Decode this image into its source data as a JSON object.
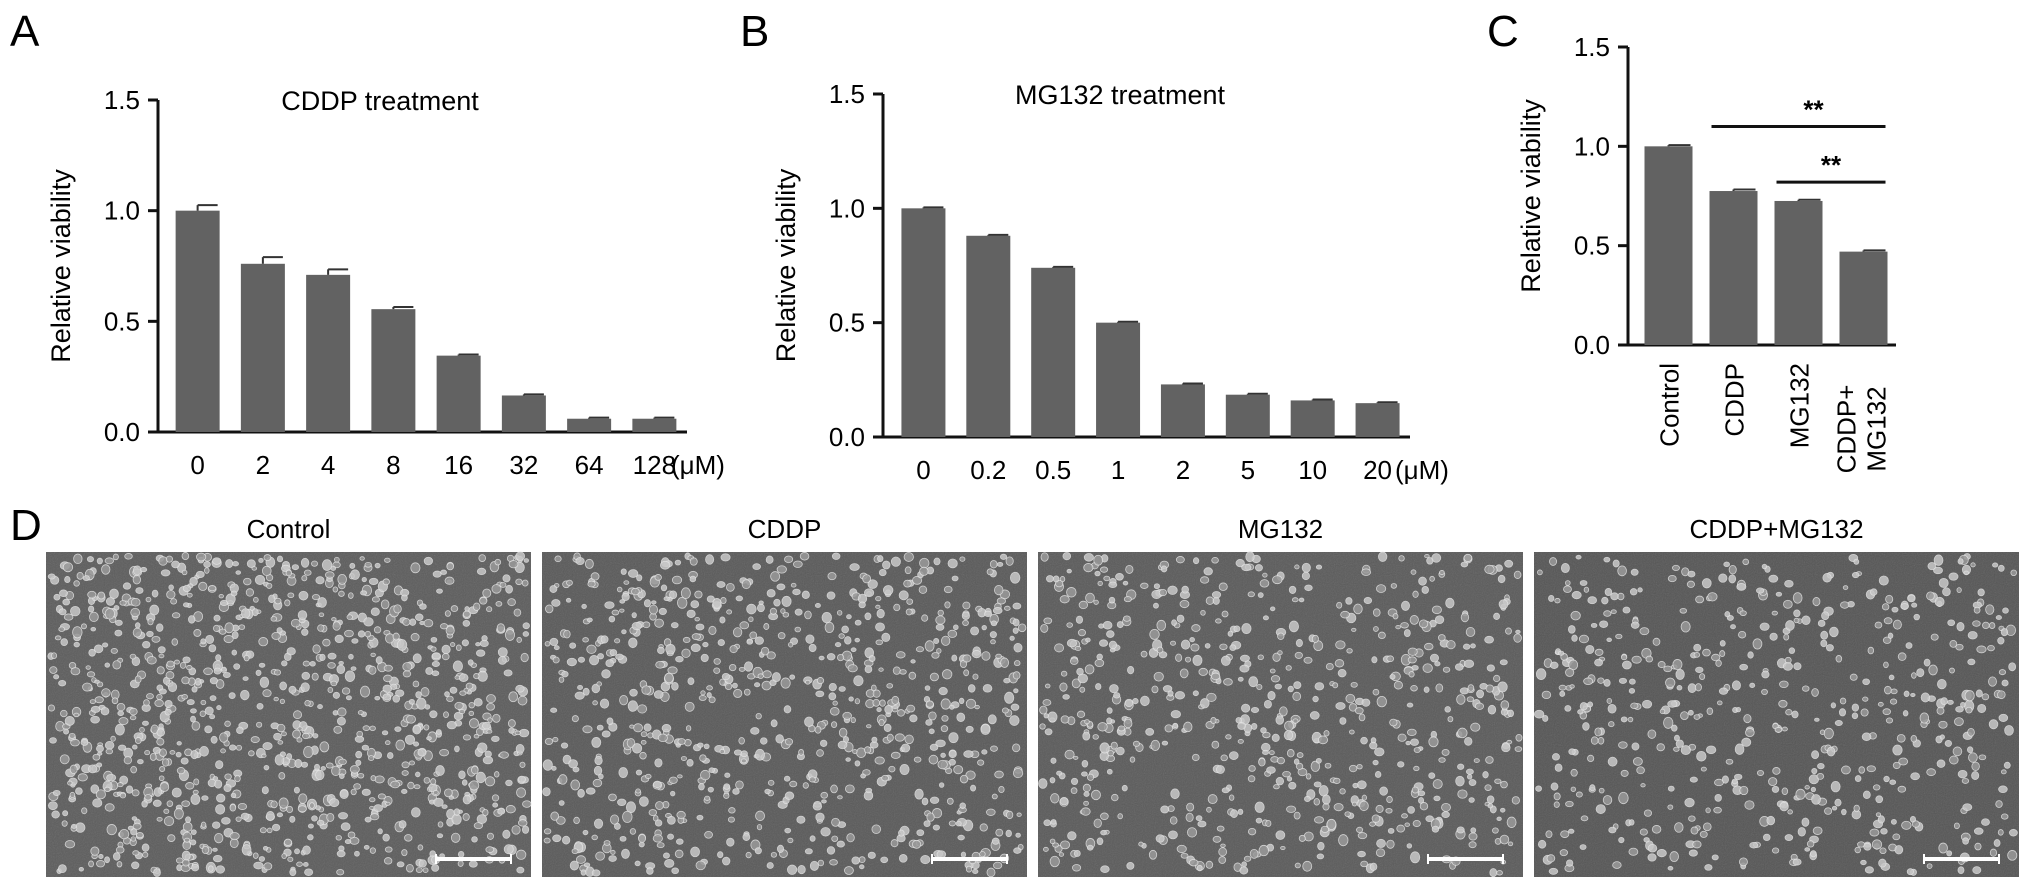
{
  "panels": {
    "A": {
      "letter": "A"
    },
    "B": {
      "letter": "B"
    },
    "C": {
      "letter": "C"
    },
    "D": {
      "letter": "D"
    }
  },
  "chart_data": [
    {
      "id": "A",
      "type": "bar",
      "title": "CDDP treatment",
      "ylabel": "Relative viability",
      "xlabel": "",
      "unit_label": "(μM)",
      "categories": [
        "0",
        "2",
        "4",
        "8",
        "16",
        "32",
        "64",
        "128"
      ],
      "values": [
        1.0,
        0.76,
        0.71,
        0.555,
        0.345,
        0.165,
        0.06,
        0.06
      ],
      "errors": [
        0.025,
        0.03,
        0.025,
        0.01,
        0.005,
        0.005,
        0.005,
        0.005
      ],
      "ylim": [
        0,
        1.5
      ],
      "yticks": [
        "0.0",
        "0.5",
        "1.0",
        "1.5"
      ],
      "bar_color": "#626262"
    },
    {
      "id": "B",
      "type": "bar",
      "title": "MG132 treatment",
      "ylabel": "Relative viability",
      "xlabel": "",
      "unit_label": "(μM)",
      "categories": [
        "0",
        "0.2",
        "0.5",
        "1",
        "2",
        "5",
        "10",
        "20"
      ],
      "values": [
        1.0,
        0.88,
        0.74,
        0.5,
        0.23,
        0.185,
        0.16,
        0.148
      ],
      "errors": [
        0.004,
        0.004,
        0.004,
        0.004,
        0.004,
        0.004,
        0.004,
        0.004
      ],
      "ylim": [
        0,
        1.5
      ],
      "yticks": [
        "0.0",
        "0.5",
        "1.0",
        "1.5"
      ],
      "bar_color": "#626262"
    },
    {
      "id": "C",
      "type": "bar",
      "title": "",
      "ylabel": "Relative viability",
      "xlabel": "",
      "categories": [
        "Control",
        "CDDP",
        "MG132",
        "CDDP+\nMG132"
      ],
      "values": [
        1.0,
        0.775,
        0.725,
        0.47
      ],
      "errors": [
        0.006,
        0.008,
        0.006,
        0.006
      ],
      "ylim": [
        0,
        1.5
      ],
      "yticks": [
        "0.0",
        "0.5",
        "1.0",
        "1.5"
      ],
      "bar_color": "#626262",
      "annotations": [
        {
          "label": "**",
          "from": "CDDP",
          "to": "CDDP+\nMG132",
          "y": 1.1
        },
        {
          "label": "**",
          "from": "MG132",
          "to": "CDDP+\nMG132",
          "y": 0.82
        }
      ]
    }
  ],
  "micrographs": {
    "panel_label": "D",
    "items": [
      {
        "label": "Control",
        "density": 1.0,
        "tone": "#5c5c5c"
      },
      {
        "label": "CDDP",
        "density": 0.72,
        "tone": "#595959"
      },
      {
        "label": "MG132",
        "density": 0.62,
        "tone": "#5a5a5a"
      },
      {
        "label": "CDDP+MG132",
        "density": 0.52,
        "tone": "#555555"
      }
    ]
  }
}
